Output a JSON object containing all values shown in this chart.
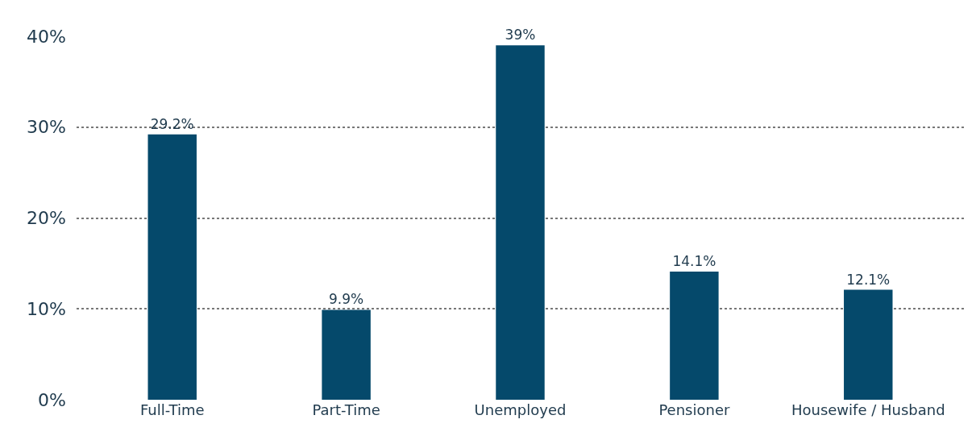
{
  "chart_data": {
    "type": "bar",
    "categories": [
      "Full-Time",
      "Part-Time",
      "Unemployed",
      "Pensioner",
      "Housewife / Husband"
    ],
    "values": [
      29.2,
      9.9,
      39,
      14.1,
      12.1
    ],
    "color": "#05496b",
    "value_labels": [
      "29.2%",
      "9.9%",
      "39%",
      "14.1%",
      "12.1%"
    ],
    "ylim": [
      0,
      40
    ],
    "yticks": [
      {
        "value": 0,
        "label": "0%"
      },
      {
        "value": 10,
        "label": "10%"
      },
      {
        "value": 20,
        "label": "20%"
      },
      {
        "value": 30,
        "label": "30%"
      },
      {
        "value": 40,
        "label": "40%"
      }
    ],
    "grid": "y"
  }
}
